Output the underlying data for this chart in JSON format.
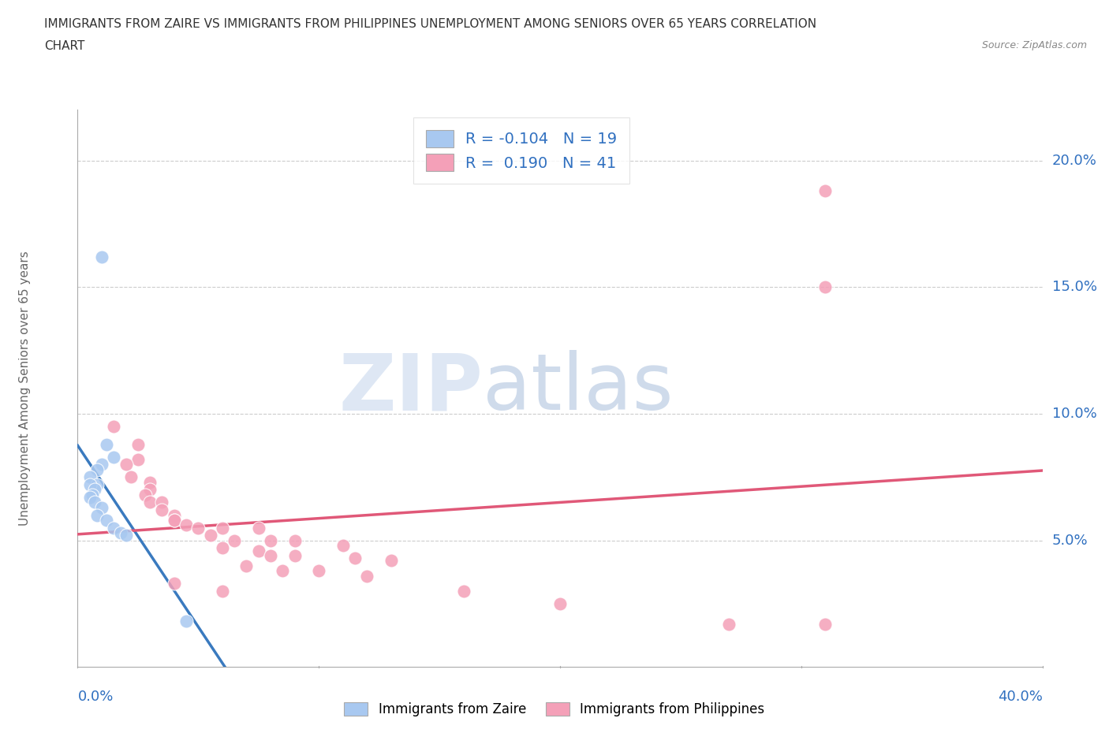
{
  "title_line1": "IMMIGRANTS FROM ZAIRE VS IMMIGRANTS FROM PHILIPPINES UNEMPLOYMENT AMONG SENIORS OVER 65 YEARS CORRELATION",
  "title_line2": "CHART",
  "source": "Source: ZipAtlas.com",
  "ylabel": "Unemployment Among Seniors over 65 years",
  "watermark_zip": "ZIP",
  "watermark_atlas": "atlas",
  "background_color": "#ffffff",
  "zaire_color": "#a8c8f0",
  "philippines_color": "#f4a0b8",
  "zaire_line_color": "#3a7abf",
  "philippines_line_color": "#e05878",
  "zaire_R": -0.104,
  "zaire_N": 19,
  "philippines_R": 0.19,
  "philippines_N": 41,
  "xlim": [
    0.0,
    0.4
  ],
  "ylim": [
    0.0,
    0.22
  ],
  "yticks": [
    0.05,
    0.1,
    0.15,
    0.2
  ],
  "ytick_labels": [
    "5.0%",
    "10.0%",
    "15.0%",
    "20.0%"
  ],
  "xtick_labels": [
    "0.0%",
    "40.0%"
  ],
  "grid_color": "#cccccc",
  "title_color": "#333333",
  "axis_label_color": "#3070c0",
  "zaire_points": [
    [
      0.01,
      0.162
    ],
    [
      0.012,
      0.088
    ],
    [
      0.015,
      0.083
    ],
    [
      0.01,
      0.08
    ],
    [
      0.008,
      0.078
    ],
    [
      0.005,
      0.075
    ],
    [
      0.008,
      0.072
    ],
    [
      0.005,
      0.072
    ],
    [
      0.007,
      0.07
    ],
    [
      0.006,
      0.068
    ],
    [
      0.005,
      0.067
    ],
    [
      0.007,
      0.065
    ],
    [
      0.01,
      0.063
    ],
    [
      0.008,
      0.06
    ],
    [
      0.012,
      0.058
    ],
    [
      0.015,
      0.055
    ],
    [
      0.018,
      0.053
    ],
    [
      0.02,
      0.052
    ],
    [
      0.045,
      0.018
    ]
  ],
  "philippines_points": [
    [
      0.31,
      0.188
    ],
    [
      0.31,
      0.15
    ],
    [
      0.015,
      0.095
    ],
    [
      0.025,
      0.088
    ],
    [
      0.025,
      0.082
    ],
    [
      0.02,
      0.08
    ],
    [
      0.022,
      0.075
    ],
    [
      0.03,
      0.073
    ],
    [
      0.03,
      0.07
    ],
    [
      0.028,
      0.068
    ],
    [
      0.03,
      0.065
    ],
    [
      0.035,
      0.065
    ],
    [
      0.035,
      0.062
    ],
    [
      0.04,
      0.06
    ],
    [
      0.04,
      0.058
    ],
    [
      0.04,
      0.058
    ],
    [
      0.045,
      0.056
    ],
    [
      0.05,
      0.055
    ],
    [
      0.06,
      0.055
    ],
    [
      0.075,
      0.055
    ],
    [
      0.055,
      0.052
    ],
    [
      0.065,
      0.05
    ],
    [
      0.08,
      0.05
    ],
    [
      0.09,
      0.05
    ],
    [
      0.11,
      0.048
    ],
    [
      0.06,
      0.047
    ],
    [
      0.075,
      0.046
    ],
    [
      0.08,
      0.044
    ],
    [
      0.09,
      0.044
    ],
    [
      0.115,
      0.043
    ],
    [
      0.13,
      0.042
    ],
    [
      0.07,
      0.04
    ],
    [
      0.085,
      0.038
    ],
    [
      0.1,
      0.038
    ],
    [
      0.12,
      0.036
    ],
    [
      0.04,
      0.033
    ],
    [
      0.06,
      0.03
    ],
    [
      0.16,
      0.03
    ],
    [
      0.2,
      0.025
    ],
    [
      0.27,
      0.017
    ],
    [
      0.31,
      0.017
    ]
  ]
}
